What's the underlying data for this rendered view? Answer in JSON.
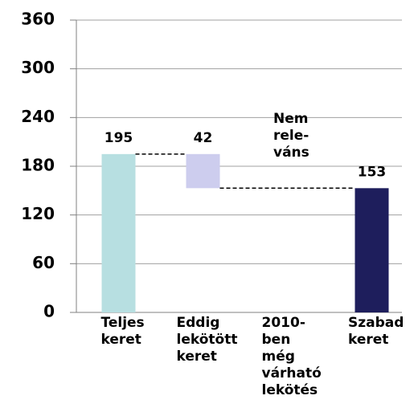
{
  "chart_data": {
    "type": "waterfall",
    "categories": [
      "Teljes\nkeret",
      "Eddig\nlekötött\nkeret",
      "2010-\nben\nmég\nvárható\nlekötés",
      "Szabad\nkeret"
    ],
    "values": [
      195,
      42,
      null,
      153
    ],
    "measures": [
      "total",
      "decrease",
      "decrease",
      "total"
    ],
    "colors": [
      "#b7dfe1",
      "#cdcdee",
      null,
      "#1e1e5c"
    ],
    "annotations": [
      {
        "category": 2,
        "text": "Nem\nrele-\nváns"
      }
    ],
    "ylim": [
      0,
      360
    ],
    "yticks": [
      0,
      60,
      120,
      180,
      240,
      300,
      360
    ],
    "grid": true,
    "connectors": true
  }
}
